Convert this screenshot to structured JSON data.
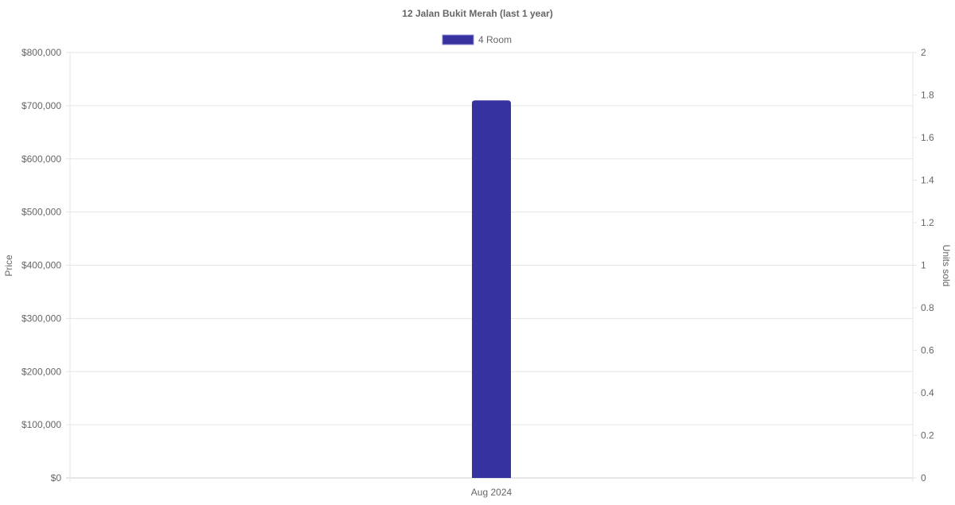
{
  "chart_data": {
    "type": "bar",
    "title": "12 Jalan Bukit Merah (last 1 year)",
    "categories": [
      "Aug 2024"
    ],
    "series": [
      {
        "name": "4 Room",
        "values": [
          710000
        ],
        "color": "#3632a0",
        "axis": "left"
      }
    ],
    "ylabel": "Price",
    "y2label": "Units sold",
    "ylim": [
      0,
      800000
    ],
    "y2lim": [
      0,
      2
    ],
    "yticks": [
      "$0",
      "$100,000",
      "$200,000",
      "$300,000",
      "$400,000",
      "$500,000",
      "$600,000",
      "$700,000",
      "$800,000"
    ],
    "y2ticks": [
      "0",
      "0.2",
      "0.4",
      "0.6",
      "0.8",
      "1",
      "1.2",
      "1.4",
      "1.6",
      "1.8",
      "2"
    ],
    "grid": true,
    "legend": "top"
  }
}
